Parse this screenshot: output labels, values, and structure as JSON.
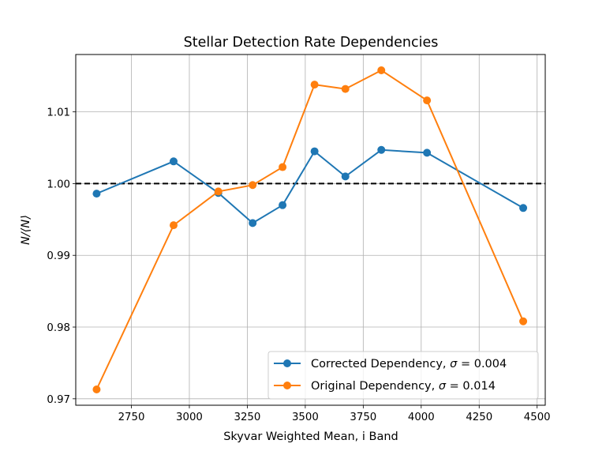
{
  "chart_data": {
    "type": "line",
    "title": "Stellar Detection Rate Dependencies",
    "xlabel": "Skyvar Weighted Mean, i Band",
    "ylabel": "N/⟨N⟩",
    "xlim": [
      2510,
      4535
    ],
    "ylim": [
      0.9691,
      1.018
    ],
    "x_ticks": [
      2750,
      3000,
      3250,
      3500,
      3750,
      4000,
      4250,
      4500
    ],
    "y_ticks": [
      0.97,
      0.98,
      0.99,
      1.0,
      1.01
    ],
    "y_tick_labels": [
      "0.97",
      "0.98",
      "0.99",
      "1.00",
      "1.01"
    ],
    "grid": true,
    "legend_position": "lower-right",
    "reference_line": {
      "y": 1.0,
      "style": "dashed",
      "color": "#000000"
    },
    "series": [
      {
        "name": "Corrected Dependency, σ = 0.004",
        "label_main": "Corrected Dependency, ",
        "label_sigma": "σ",
        "label_value": " = 0.004",
        "color": "#1f77b4",
        "x": [
          2600,
          2932,
          3125,
          3273,
          3402,
          3540,
          3673,
          3828,
          4025,
          4440
        ],
        "y": [
          0.9986,
          1.0031,
          0.9987,
          0.9945,
          0.997,
          1.0045,
          1.001,
          1.0047,
          1.0043,
          0.9966
        ]
      },
      {
        "name": "Original Dependency, σ = 0.014",
        "label_main": "Original Dependency, ",
        "label_sigma": "σ",
        "label_value": " = 0.014",
        "color": "#ff7f0e",
        "x": [
          2600,
          2932,
          3125,
          3273,
          3402,
          3540,
          3673,
          3828,
          4025,
          4440
        ],
        "y": [
          0.9713,
          0.9942,
          0.9989,
          0.9998,
          1.0023,
          1.0138,
          1.0132,
          1.0158,
          1.0116,
          0.9808
        ]
      }
    ]
  }
}
